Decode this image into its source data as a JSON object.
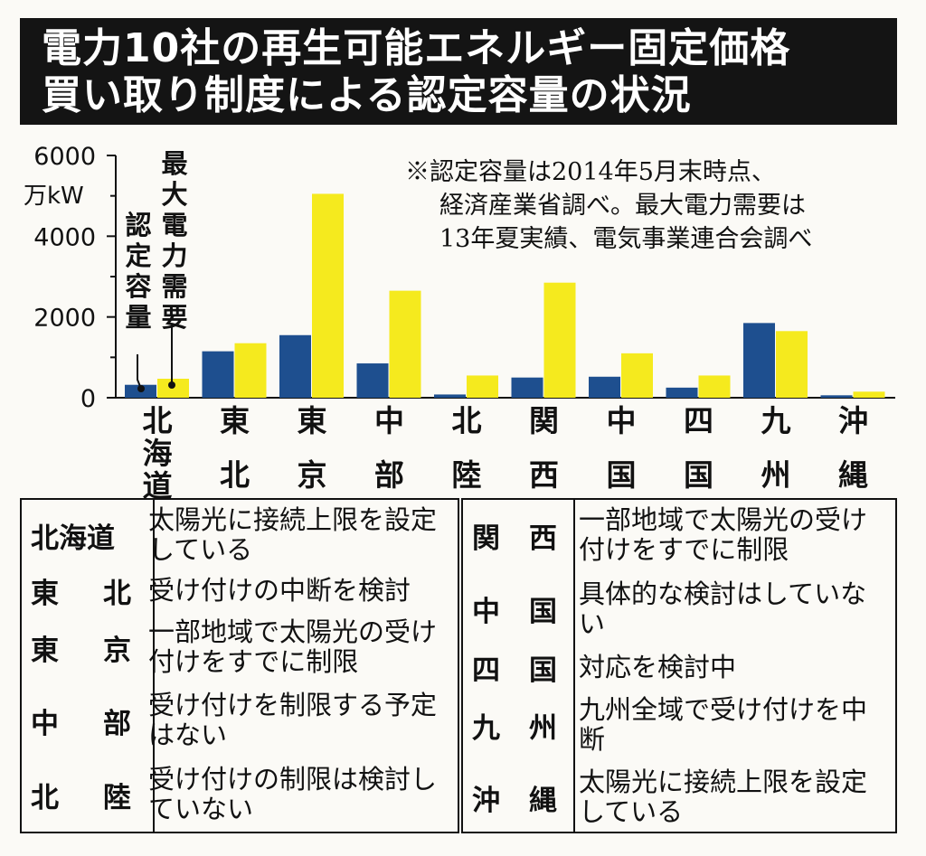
{
  "title": {
    "line1": "電力10社の再生可能エネルギー固定価格",
    "line2": "買い取り制度による認定容量の状況"
  },
  "note": {
    "line1": "※認定容量は2014年5月末時点、",
    "line2": "経済産業省調べ。最大電力需要は",
    "line3": "13年夏実績、電気事業連合会調べ"
  },
  "legend": {
    "certified": "認定容量",
    "peak": "最大電力需要"
  },
  "colors": {
    "certified": "#1e4f8f",
    "peak": "#f5ea1e",
    "title_bg": "#141414"
  },
  "chart_data": {
    "type": "bar",
    "title": "",
    "ylabel": "万kW",
    "ylim": [
      0,
      6000
    ],
    "yticks": [
      0,
      2000,
      4000,
      6000
    ],
    "grid": false,
    "categories": [
      "北海道",
      "東北",
      "東京",
      "中部",
      "北陸",
      "関西",
      "中国",
      "四国",
      "九州",
      "沖縄"
    ],
    "category_labels": [
      "北海道",
      "東北",
      "東京",
      "中部",
      "北陸",
      "関西",
      "中国",
      "四国",
      "九州",
      "沖縄"
    ],
    "series": [
      {
        "name": "認定容量",
        "values": [
          320,
          1150,
          1550,
          850,
          80,
          500,
          520,
          250,
          1850,
          60
        ]
      },
      {
        "name": "最大電力需要",
        "values": [
          470,
          1350,
          5050,
          2650,
          550,
          2850,
          1100,
          550,
          1650,
          150
        ]
      }
    ]
  },
  "table": {
    "left": [
      {
        "name": "北海道",
        "desc": "太陽光に接続上限を設定している"
      },
      {
        "name": "東北",
        "desc": "受け付けの中断を検討"
      },
      {
        "name": "東京",
        "desc": "一部地域で太陽光の受け付けをすでに制限"
      },
      {
        "name": "中部",
        "desc": "受け付けを制限する予定はない"
      },
      {
        "name": "北陸",
        "desc": "受け付けの制限は検討していない"
      }
    ],
    "right": [
      {
        "name": "関西",
        "desc": "一部地域で太陽光の受け付けをすでに制限"
      },
      {
        "name": "中国",
        "desc": "具体的な検討はしていない"
      },
      {
        "name": "四国",
        "desc": "対応を検討中"
      },
      {
        "name": "九州",
        "desc": "九州全域で受け付けを中断"
      },
      {
        "name": "沖縄",
        "desc": "太陽光に接続上限を設定している"
      }
    ]
  }
}
